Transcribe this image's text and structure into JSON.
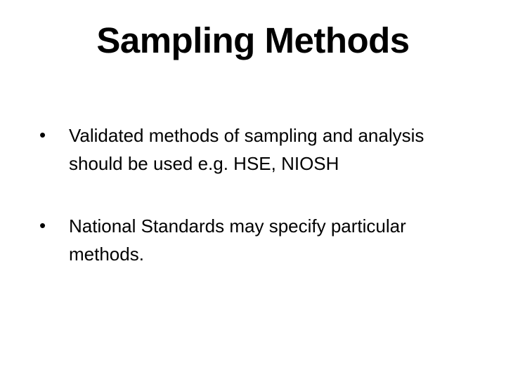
{
  "slide": {
    "title": "Sampling Methods",
    "title_fontsize": 51,
    "title_fontweight": "bold",
    "background_color": "#ffffff",
    "text_color": "#000000",
    "bullets": [
      {
        "marker": "•",
        "text": "Validated methods of sampling and analysis should be used e.g. HSE, NIOSH"
      },
      {
        "marker": "•",
        "text": "National Standards may specify particular methods."
      }
    ],
    "body_fontsize": 26,
    "body_lineheight": 1.55
  }
}
